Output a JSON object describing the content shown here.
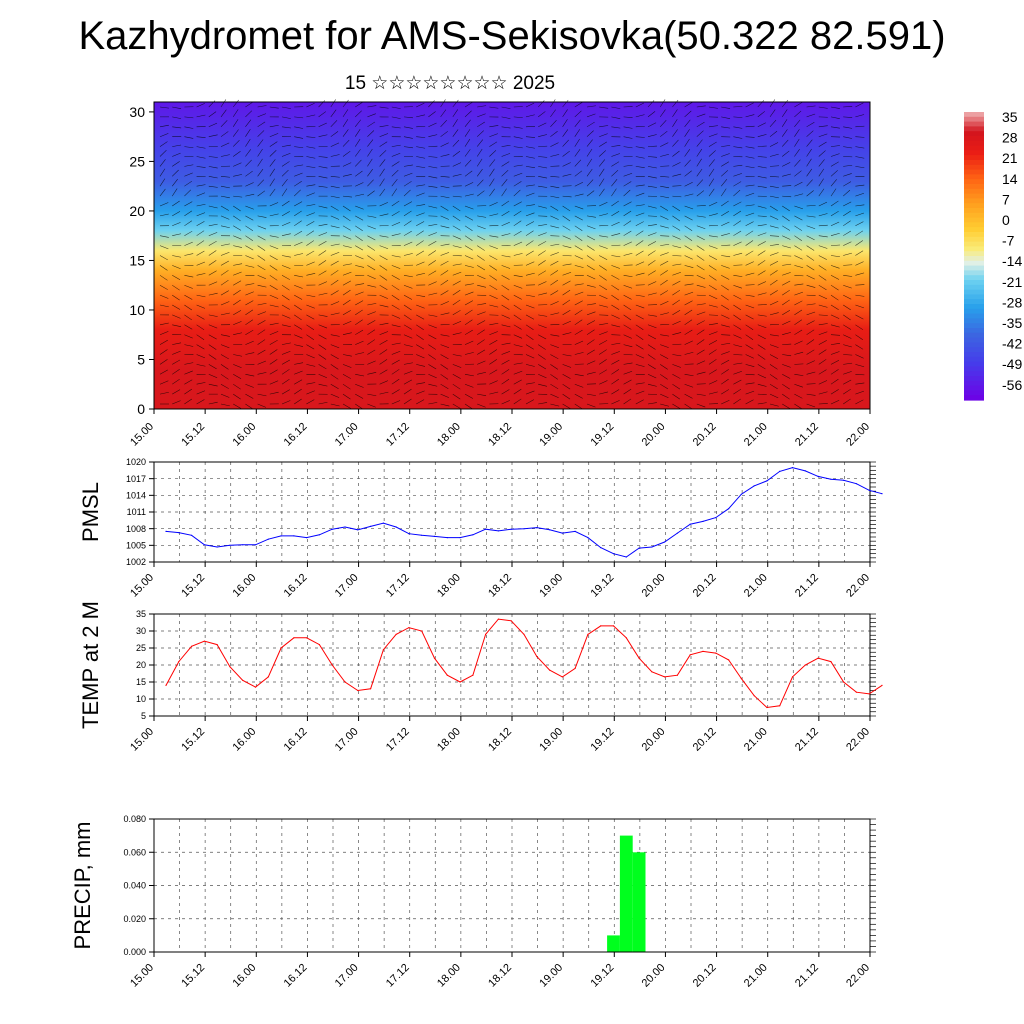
{
  "title": "Kazhydromet for AMS-Sekisovka(50.322 82.591)",
  "subtitle": "15 ☆☆☆☆☆☆☆☆ 2025",
  "time_ticks": [
    "15.00",
    "15.12",
    "16.00",
    "16.12",
    "17.00",
    "17.12",
    "18.00",
    "18.12",
    "19.00",
    "19.12",
    "20.00",
    "20.12",
    "21.00",
    "21.12",
    "22.00"
  ],
  "chart_data": [
    {
      "type": "heatmap",
      "title": "",
      "ylabel": "",
      "ylim": [
        0,
        31
      ],
      "y_ticks": [
        "0",
        "5",
        "10",
        "15",
        "20",
        "25",
        "30"
      ],
      "colorbar": {
        "labels": [
          "35",
          "28",
          "21",
          "14",
          "7",
          "0",
          "-7",
          "-14",
          "-21",
          "-28",
          "-35",
          "-42",
          "-49",
          "-56"
        ],
        "range": [
          -63,
          40
        ]
      },
      "profile": [
        {
          "h": 0,
          "t": 31
        },
        {
          "h": 4,
          "t": 31
        },
        {
          "h": 8,
          "t": 26
        },
        {
          "h": 11,
          "t": 16
        },
        {
          "h": 14,
          "t": 4
        },
        {
          "h": 16,
          "t": -8
        },
        {
          "h": 18,
          "t": -20
        },
        {
          "h": 20,
          "t": -30
        },
        {
          "h": 23,
          "t": -42
        },
        {
          "h": 26,
          "t": -48
        },
        {
          "h": 31,
          "t": -58
        }
      ]
    },
    {
      "type": "line",
      "ylabel": "PMSL",
      "ylim": [
        1002,
        1020
      ],
      "y_ticks": [
        "1002",
        "1005",
        "1008",
        "1011",
        "1014",
        "1017",
        "1020"
      ],
      "color": "#0000ff",
      "x": [
        0,
        3,
        6,
        9,
        12,
        15,
        18,
        21,
        24,
        27,
        30,
        33,
        36,
        39,
        42,
        45,
        48,
        51,
        54,
        57,
        60,
        63,
        66,
        69,
        72,
        75,
        78,
        81,
        84,
        87,
        90,
        93,
        96,
        99,
        102,
        105,
        108,
        111,
        114,
        117,
        120,
        123,
        126,
        129,
        132,
        135,
        138,
        141,
        144,
        147,
        150,
        153,
        156,
        159,
        162,
        165,
        168
      ],
      "values": [
        1007.5,
        1007.3,
        1006.8,
        1005.1,
        1004.7,
        1005.0,
        1005.1,
        1005.1,
        1006.1,
        1006.7,
        1006.7,
        1006.4,
        1006.9,
        1007.9,
        1008.3,
        1007.8,
        1008.4,
        1009.0,
        1008.3,
        1007.1,
        1006.8,
        1006.6,
        1006.4,
        1006.4,
        1006.9,
        1007.9,
        1007.6,
        1007.9,
        1008.0,
        1008.2,
        1007.8,
        1007.2,
        1007.5,
        1006.4,
        1004.6,
        1003.5,
        1002.9,
        1004.5,
        1004.7,
        1005.6,
        1007.2,
        1008.8,
        1009.3,
        1010.0,
        1011.6,
        1014.2,
        1015.7,
        1016.6,
        1018.3,
        1019.0,
        1018.4,
        1017.4,
        1016.9,
        1016.7,
        1016.1,
        1014.9,
        1014.3
      ]
    },
    {
      "type": "line",
      "ylabel": "TEMP at 2 M",
      "ylim": [
        5,
        35
      ],
      "y_ticks": [
        "5",
        "10",
        "15",
        "20",
        "25",
        "30",
        "35"
      ],
      "color": "#ff0000",
      "x": [
        0,
        3,
        6,
        9,
        12,
        15,
        18,
        21,
        24,
        27,
        30,
        33,
        36,
        39,
        42,
        45,
        48,
        51,
        54,
        57,
        60,
        63,
        66,
        69,
        72,
        75,
        78,
        81,
        84,
        87,
        90,
        93,
        96,
        99,
        102,
        105,
        108,
        111,
        114,
        117,
        120,
        123,
        126,
        129,
        132,
        135,
        138,
        141,
        144,
        147,
        150,
        153,
        156,
        159,
        162,
        165,
        168
      ],
      "values": [
        14,
        21,
        25.5,
        27,
        26,
        19.5,
        15.5,
        13.5,
        16.5,
        25,
        28,
        28,
        26,
        20,
        15,
        12.5,
        13,
        24.5,
        29,
        31,
        30,
        22,
        17,
        15,
        17,
        29,
        33.5,
        33,
        29,
        22.5,
        18.5,
        16.5,
        19,
        29,
        31.5,
        31.5,
        28,
        22,
        18,
        16.5,
        17,
        23,
        24,
        23.5,
        21.5,
        16,
        11,
        7.5,
        8,
        16.5,
        20,
        22,
        21,
        15,
        12,
        11.5,
        14
      ]
    },
    {
      "type": "bar",
      "ylabel": "PRECIP, mm",
      "ylim": [
        0,
        0.08
      ],
      "y_ticks": [
        "0.000",
        "0.020",
        "0.040",
        "0.060",
        "0.080"
      ],
      "color": "#00ff1e",
      "bars": [
        {
          "x": 105,
          "value": 0.01
        },
        {
          "x": 108,
          "value": 0.07
        },
        {
          "x": 111,
          "value": 0.06
        }
      ]
    }
  ]
}
